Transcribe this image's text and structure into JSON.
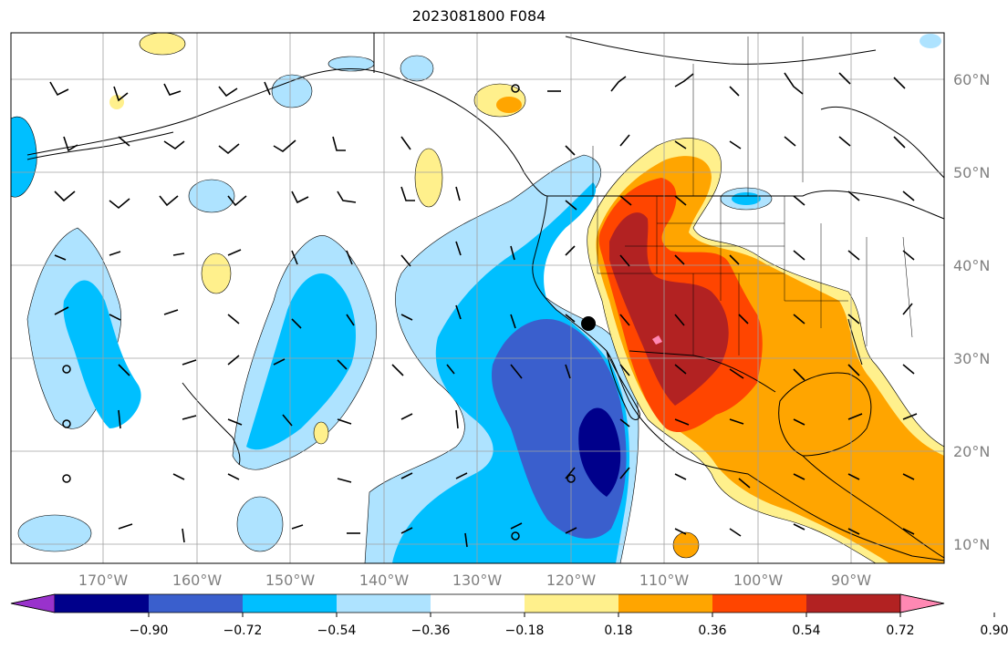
{
  "title": "2023081800 F084",
  "lon_labels": [
    "170°W",
    "160°W",
    "150°W",
    "140°W",
    "130°W",
    "120°W",
    "110°W",
    "100°W",
    "90°W"
  ],
  "lat_labels": [
    "60°N",
    "50°N",
    "40°N",
    "30°N",
    "20°N",
    "10°N"
  ],
  "colorbar": {
    "ticks": [
      "−0.90",
      "−0.72",
      "−0.54",
      "−0.36",
      "−0.18",
      "0.18",
      "0.36",
      "0.54",
      "0.72",
      "0.90"
    ],
    "colors": [
      "#9932cc",
      "#00008b",
      "#3a5fcd",
      "#00bfff",
      "#aee3ff",
      "#ffffff",
      "#fff08c",
      "#ffa500",
      "#ff4500",
      "#b22222",
      "#ff88b3"
    ]
  },
  "colors": {
    "strong_negative": "#00008b",
    "negative": "#3a5fcd",
    "moderate_negative": "#00bfff",
    "weak_negative": "#aee3ff",
    "weak_positive": "#fff08c",
    "moderate_positive": "#ffa500",
    "positive": "#ff4500",
    "strong_positive": "#b22222",
    "extreme_positive": "#ff88b3"
  },
  "icons": {
    "marker": "filled-circle-location-marker",
    "wind": "wind-barb-icons"
  }
}
